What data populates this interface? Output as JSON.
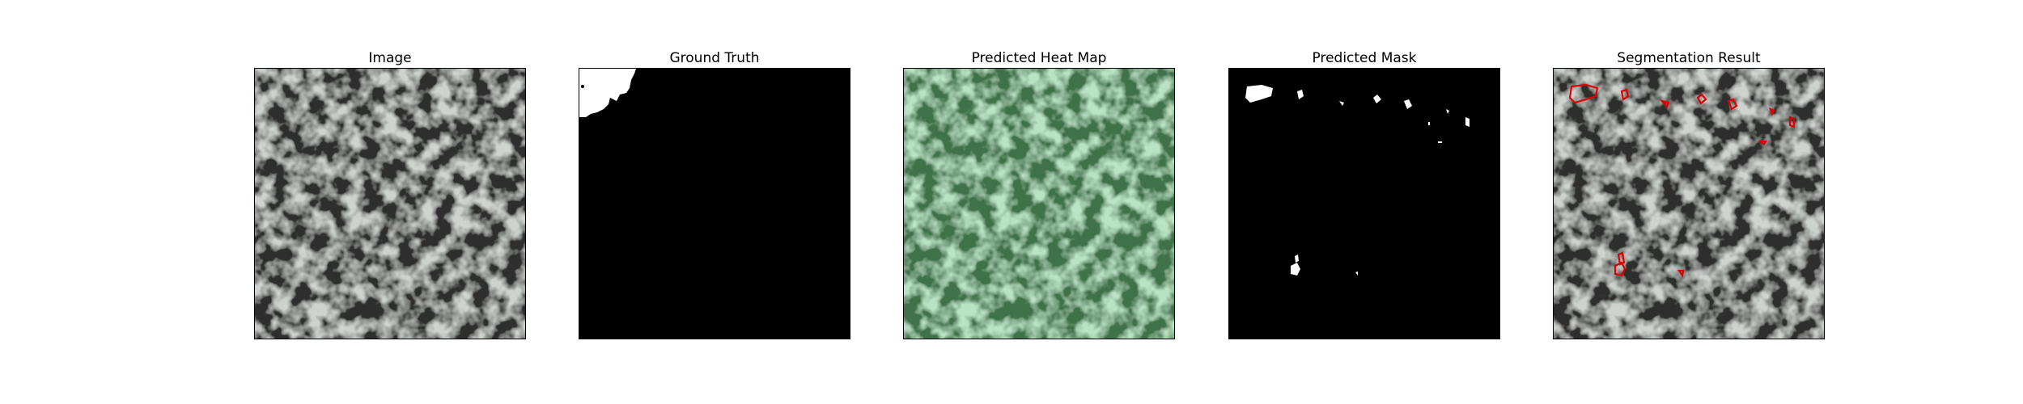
{
  "panels": [
    {
      "title": "Image"
    },
    {
      "title": "Ground Truth"
    },
    {
      "title": "Predicted Heat Map"
    },
    {
      "title": "Predicted Mask"
    },
    {
      "title": "Segmentation Result"
    }
  ],
  "colors": {
    "texture_light": "#9aa29a",
    "texture_dark": "#2e2f2e",
    "heat_light": "#7cc48c",
    "heat_dark": "#3f7248",
    "mask_bg": "#000000",
    "mask_fg": "#ffffff",
    "contour": "#e00000"
  }
}
